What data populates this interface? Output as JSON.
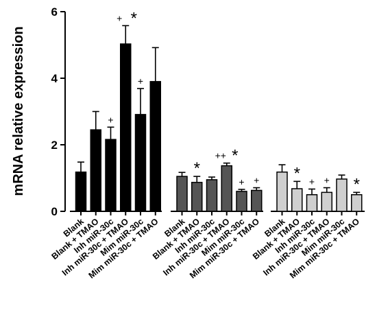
{
  "chart_data": {
    "type": "bar",
    "ylabel": "mRNA relative expression",
    "ylim": [
      0,
      6
    ],
    "yticks": [
      0,
      2,
      4,
      6
    ],
    "grid": false,
    "categories": [
      "Blank",
      "Blank + TMAO",
      "Inh miR-30c",
      "Inh miR-30c + TMAO",
      "Mim miR-30c",
      "Mim miR-30c + TMAO"
    ],
    "groups": [
      {
        "color": "#000000",
        "values": [
          1.18,
          2.45,
          2.16,
          5.03,
          2.91,
          3.9
        ],
        "errors": [
          0.3,
          0.55,
          0.37,
          0.55,
          0.78,
          1.02
        ],
        "annotations": [
          "",
          "",
          "+",
          "+ *",
          "+",
          ""
        ]
      },
      {
        "color": "#555555",
        "values": [
          1.05,
          0.87,
          0.95,
          1.37,
          0.6,
          0.63
        ],
        "errors": [
          0.12,
          0.18,
          0.08,
          0.08,
          0.06,
          0.08
        ],
        "annotations": [
          "",
          "*",
          "",
          "++ *",
          "+",
          "+"
        ]
      },
      {
        "color": "#cfcfcf",
        "values": [
          1.18,
          0.68,
          0.5,
          0.57,
          0.97,
          0.5
        ],
        "errors": [
          0.22,
          0.22,
          0.17,
          0.14,
          0.12,
          0.07
        ],
        "annotations": [
          "",
          "*",
          "+",
          "+",
          "",
          "*"
        ]
      }
    ]
  }
}
